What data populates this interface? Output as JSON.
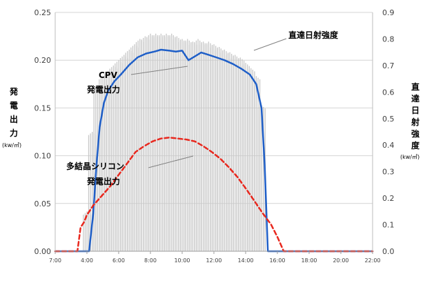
{
  "chart_data": {
    "type": "line",
    "xlabel": "",
    "left_axis": {
      "label": "発電出力",
      "unit": "(kw/㎡)",
      "ylim": [
        0,
        0.25
      ],
      "ticks": [
        "0.00",
        "0.05",
        "0.10",
        "0.15",
        "0.20",
        "0.25"
      ]
    },
    "right_axis": {
      "label": "直達日射強度",
      "unit": "(kw/㎡)",
      "ylim": [
        0,
        0.9
      ],
      "ticks": [
        "0.0",
        "0.1",
        "0.2",
        "0.3",
        "0.4",
        "0.5",
        "0.6",
        "0.7",
        "0.8",
        "0.9"
      ]
    },
    "x_ticks": [
      "7:00",
      "4:00",
      "6:00",
      "8:00",
      "10:00",
      "12:00",
      "14:00",
      "16:00",
      "18:00",
      "20:00",
      "22:00"
    ],
    "grid": true,
    "series": [
      {
        "name": "直達日射強度",
        "type": "bar",
        "axis": "right",
        "color": "#c8c8c8",
        "x": [
          8.5,
          8.75,
          9.0,
          9.25,
          9.5,
          9.75,
          10.0,
          10.25,
          10.5,
          10.75,
          11.0,
          11.25,
          11.5,
          11.75,
          12.0,
          12.25,
          12.5,
          12.75,
          13.0,
          13.25,
          13.5,
          13.75,
          14.0,
          14.25,
          14.5,
          14.75,
          15.0,
          15.25,
          15.5,
          15.75,
          16.0,
          16.25,
          16.5,
          16.75
        ],
        "values": [
          0.15,
          0.45,
          0.62,
          0.66,
          0.68,
          0.7,
          0.72,
          0.74,
          0.76,
          0.78,
          0.8,
          0.81,
          0.82,
          0.82,
          0.82,
          0.82,
          0.82,
          0.81,
          0.8,
          0.8,
          0.79,
          0.8,
          0.79,
          0.79,
          0.78,
          0.77,
          0.76,
          0.75,
          0.74,
          0.73,
          0.71,
          0.69,
          0.66,
          0.55
        ]
      },
      {
        "name": "CPV 発電出力",
        "type": "line",
        "axis": "left",
        "color": "#1f5fc8",
        "x": [
          7,
          8.6,
          8.8,
          8.95,
          9.1,
          9.3,
          9.5,
          9.8,
          10.1,
          10.5,
          10.9,
          11.3,
          11.7,
          12.0,
          12.4,
          12.7,
          13.0,
          13.3,
          13.6,
          13.9,
          14.2,
          14.6,
          15.0,
          15.4,
          15.8,
          16.2,
          16.5,
          16.75,
          16.9,
          17.05,
          22
        ],
        "values": [
          0,
          0,
          0.04,
          0.09,
          0.13,
          0.155,
          0.168,
          0.178,
          0.185,
          0.195,
          0.203,
          0.207,
          0.209,
          0.211,
          0.21,
          0.209,
          0.21,
          0.2,
          0.204,
          0.208,
          0.206,
          0.203,
          0.2,
          0.196,
          0.191,
          0.185,
          0.175,
          0.15,
          0.09,
          0,
          0
        ]
      },
      {
        "name": "多結晶シリコン 発電出力",
        "type": "line",
        "axis": "left",
        "color": "#e8281e",
        "dashed": true,
        "x": [
          7,
          8.05,
          8.2,
          8.35,
          8.5,
          8.8,
          9.2,
          9.6,
          10.0,
          10.4,
          10.8,
          11.2,
          11.6,
          12.0,
          12.4,
          12.8,
          13.2,
          13.6,
          14.0,
          14.4,
          14.8,
          15.2,
          15.6,
          16.0,
          16.4,
          16.8,
          17.2,
          17.5,
          17.8,
          22
        ],
        "values": [
          0,
          0,
          0.025,
          0.03,
          0.038,
          0.048,
          0.058,
          0.068,
          0.08,
          0.092,
          0.104,
          0.11,
          0.115,
          0.118,
          0.119,
          0.118,
          0.117,
          0.115,
          0.11,
          0.104,
          0.097,
          0.088,
          0.078,
          0.066,
          0.053,
          0.04,
          0.028,
          0.015,
          0,
          0
        ]
      }
    ],
    "annotations": [
      {
        "id": "ann_dni",
        "text": "直達日射強度"
      },
      {
        "id": "ann_cpv",
        "lines": [
          "CPV",
          "発電出力"
        ]
      },
      {
        "id": "ann_si",
        "lines": [
          "多結晶シリコン",
          "発電出力"
        ]
      }
    ]
  }
}
